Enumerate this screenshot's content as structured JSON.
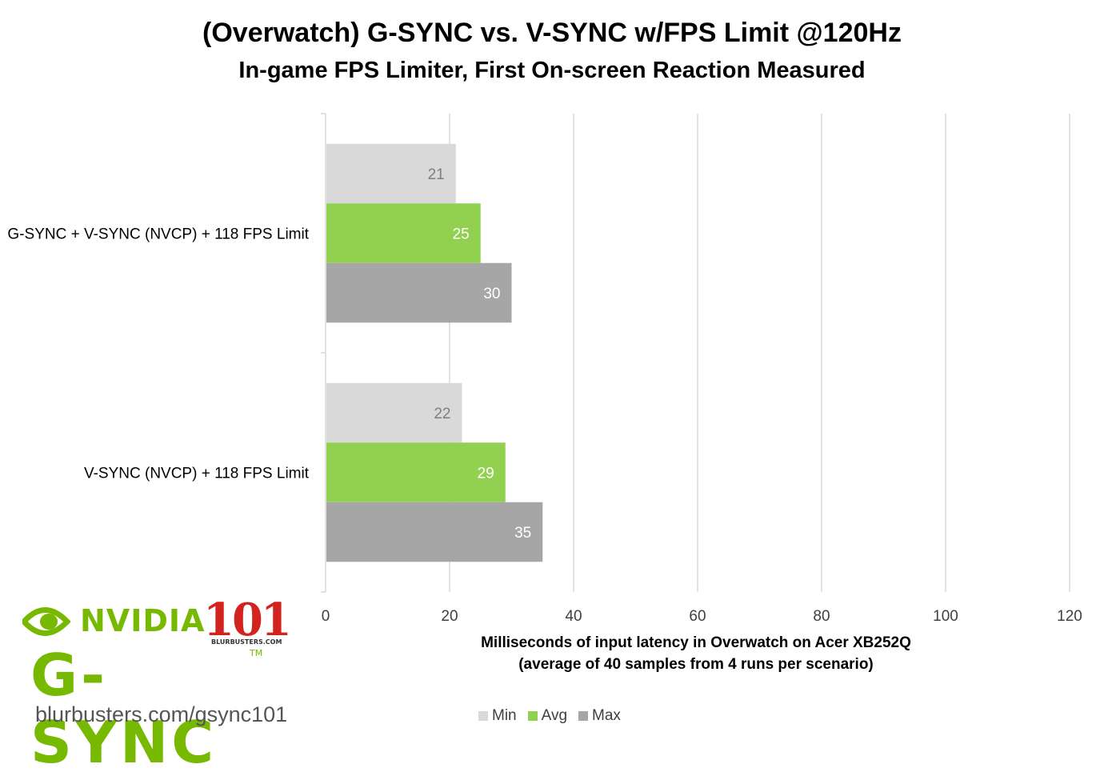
{
  "chart_data": {
    "type": "bar",
    "orientation": "horizontal",
    "title": "(Overwatch) G-SYNC vs. V-SYNC w/FPS Limit @120Hz",
    "subtitle": "In-game FPS Limiter, First On-screen Reaction Measured",
    "categories": [
      "G-SYNC + V-SYNC (NVCP) + 118 FPS Limit",
      "V-SYNC (NVCP) + 118 FPS Limit"
    ],
    "series": [
      {
        "name": "Min",
        "values": [
          21,
          22
        ],
        "color": "#d9d9d9",
        "label_color": "#7f7f7f"
      },
      {
        "name": "Avg",
        "values": [
          25,
          29
        ],
        "color": "#92d050",
        "label_color": "#ffffff"
      },
      {
        "name": "Max",
        "values": [
          30,
          35
        ],
        "color": "#a6a6a6",
        "label_color": "#ffffff"
      }
    ],
    "xlabel_line1": "Milliseconds of input latency in Overwatch on Acer XB252Q",
    "xlabel_line2": "(average of 40 samples from 4 runs per scenario)",
    "xlim": [
      0,
      120
    ],
    "xticks": [
      0,
      20,
      40,
      60,
      80,
      100,
      120
    ],
    "grid": true,
    "legend_position": "bottom"
  },
  "branding": {
    "nvidia": "NVIDIA",
    "badge_number": "101",
    "badge_site": "BLURBUSTERS.COM",
    "gsync": "G-SYNC",
    "tm": "TM",
    "url": "blurbusters.com/gsync101",
    "green": "#76b900",
    "red": "#d3231e"
  }
}
